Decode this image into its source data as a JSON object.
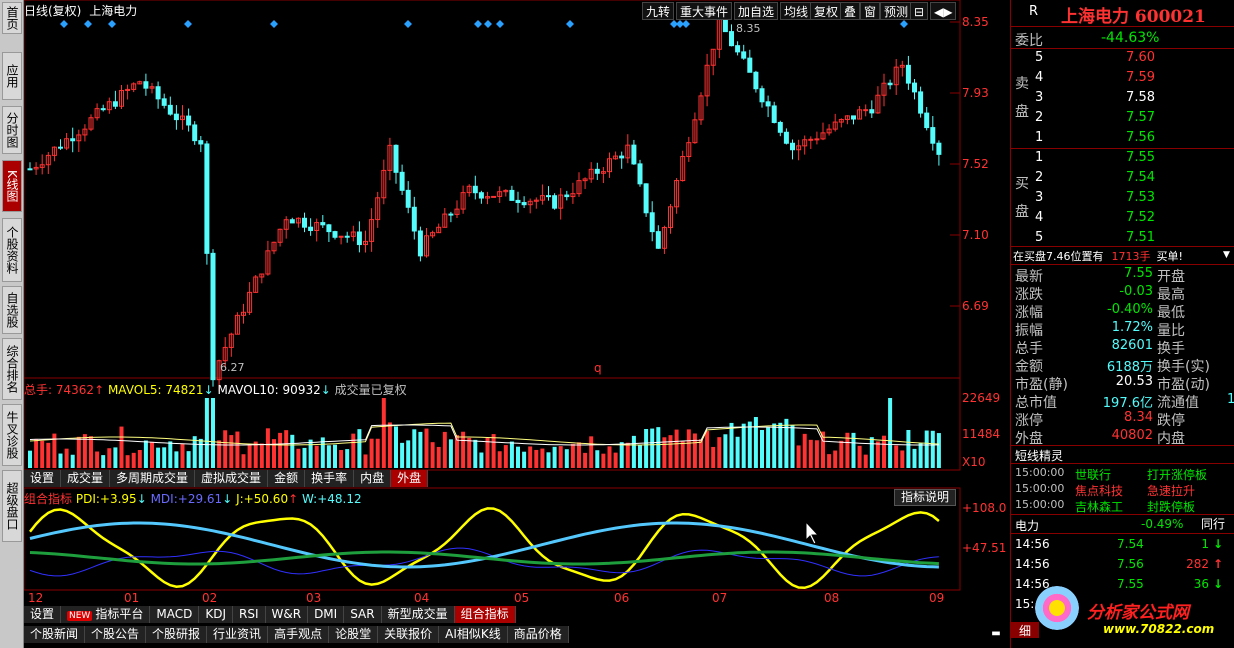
{
  "left_nav": [
    {
      "label": "首页",
      "active": false
    },
    {
      "label": "应用",
      "active": false
    },
    {
      "label": "分时图",
      "active": false
    },
    {
      "label": "K线图",
      "active": true
    },
    {
      "label": "个股资料",
      "active": false
    },
    {
      "label": "自选股",
      "active": false
    },
    {
      "label": "综合排名",
      "active": false
    },
    {
      "label": "牛叉诊股",
      "active": false
    },
    {
      "label": "超级盘口",
      "active": false
    }
  ],
  "chart_header": {
    "period": "日线(复权)",
    "name": "上海电力"
  },
  "toolbar": [
    "九转",
    "重大事件",
    "加自选",
    "均线",
    "复权",
    "叠",
    "窗",
    "预测",
    "⊟",
    "◀▶"
  ],
  "price_axis": [
    "8.35",
    "7.93",
    "7.52",
    "7.10",
    "6.69"
  ],
  "price_high_label": "8.35",
  "price_low_label": "6.27",
  "q_marker": "q",
  "volume_header": {
    "total_label": "总手:",
    "total_value": "74362",
    "total_arrow": "↑",
    "ma5_label": "MAVOL5:",
    "ma5_value": "74821",
    "ma5_arrow": "↓",
    "ma10_label": "MAVOL10:",
    "ma10_value": "90932",
    "ma10_arrow": "↓",
    "note": "成交量已复权"
  },
  "volume_axis": [
    "22649",
    "11484",
    "X10"
  ],
  "vol_tabs": [
    "设置",
    "成交量",
    "多周期成交量",
    "虚拟成交量",
    "金额",
    "换手率",
    "内盘",
    "外盘"
  ],
  "indicator_header": {
    "name": "组合指标",
    "pdi_label": "PDI:",
    "pdi_value": "+3.95",
    "pdi_arrow": "↓",
    "mdi_label": "MDI:",
    "mdi_value": "+29.61",
    "mdi_arrow": "↓",
    "j_label": "J:",
    "j_value": "+50.60",
    "j_arrow": "↑",
    "w_label": "W:",
    "w_value": "+48.12",
    "explain_button": "指标说明"
  },
  "indicator_axis": [
    "+108.0",
    "+47.51"
  ],
  "months": [
    "12",
    "01",
    "02",
    "03",
    "04",
    "05",
    "06",
    "07",
    "08",
    "09"
  ],
  "ind_tabs": [
    {
      "label": "设置",
      "badge": ""
    },
    {
      "label": "指标平台",
      "badge": "NEW"
    },
    {
      "label": "MACD",
      "badge": ""
    },
    {
      "label": "KDJ",
      "badge": ""
    },
    {
      "label": "RSI",
      "badge": ""
    },
    {
      "label": "W&R",
      "badge": ""
    },
    {
      "label": "DMI",
      "badge": ""
    },
    {
      "label": "SAR",
      "badge": ""
    },
    {
      "label": "新型成交量",
      "badge": ""
    },
    {
      "label": "组合指标",
      "badge": ""
    }
  ],
  "bottom_tabs": [
    "个股新闻",
    "个股公告",
    "个股研报",
    "行业资讯",
    "高手观点",
    "论股堂",
    "关联报价",
    "AI相似K线",
    "商品价格"
  ],
  "quote": {
    "r_label": "R",
    "title": "上海电力 600021",
    "weibi_label": "委比",
    "weibi_value": "-44.63%",
    "sell_label": "卖盘",
    "sells": [
      {
        "n": "5",
        "price": "7.60"
      },
      {
        "n": "4",
        "price": "7.59"
      },
      {
        "n": "3",
        "price": "7.58"
      },
      {
        "n": "2",
        "price": "7.57"
      },
      {
        "n": "1",
        "price": "7.56"
      }
    ],
    "buy_label": "买盘",
    "buys": [
      {
        "n": "1",
        "price": "7.55"
      },
      {
        "n": "2",
        "price": "7.54"
      },
      {
        "n": "3",
        "price": "7.53"
      },
      {
        "n": "4",
        "price": "7.52"
      },
      {
        "n": "5",
        "price": "7.51"
      }
    ],
    "notice_text": "在买盘7.46位置有",
    "notice_amount": "1713手",
    "notice_action": "买单!",
    "stats": [
      {
        "l1": "最新",
        "v1": "7.55",
        "c1": "green",
        "l2": "开盘"
      },
      {
        "l1": "涨跌",
        "v1": "-0.03",
        "c1": "green",
        "l2": "最高"
      },
      {
        "l1": "涨幅",
        "v1": "-0.40%",
        "c1": "green",
        "l2": "最低"
      },
      {
        "l1": "振幅",
        "v1": "1.72%",
        "c1": "cyan",
        "l2": "量比"
      },
      {
        "l1": "总手",
        "v1": "82601",
        "c1": "cyan",
        "l2": "换手"
      },
      {
        "l1": "金额",
        "v1": "6188万",
        "c1": "cyan",
        "l2": "换手(实)"
      },
      {
        "l1": "市盈(静)",
        "v1": "20.53",
        "c1": "white",
        "l2": "市盈(动)"
      },
      {
        "l1": "总市值",
        "v1": "197.6亿",
        "c1": "cyan",
        "l2": "流通值"
      },
      {
        "l1": "涨停",
        "v1": "8.34",
        "c1": "red",
        "l2": "跌停"
      },
      {
        "l1": "外盘",
        "v1": "40802",
        "c1": "red",
        "l2": "内盘"
      }
    ],
    "float_value_tail": "1",
    "sprite_title": "短线精灵",
    "sprites": [
      {
        "time": "15:00:00",
        "name": "世联行",
        "event": "打开涨停板",
        "color": "green"
      },
      {
        "time": "15:00:00",
        "name": "焦点科技",
        "event": "急速拉升",
        "color": "red"
      },
      {
        "time": "15:00:00",
        "name": "吉林森工",
        "event": "封跌停板",
        "color": "green"
      }
    ],
    "sector_name": "电力",
    "sector_change": "-0.49%",
    "sector_btn": "同行",
    "ticks": [
      {
        "time": "14:56",
        "price": "7.54",
        "vol": "1",
        "dir": "down"
      },
      {
        "time": "14:56",
        "price": "7.56",
        "vol": "282",
        "dir": "up"
      },
      {
        "time": "14:56",
        "price": "7.55",
        "vol": "36",
        "dir": "down"
      },
      {
        "time": "15:",
        "price": "",
        "vol": "",
        "dir": ""
      }
    ],
    "watermark": "分析家公式网",
    "watermark_url": "www.70822.com",
    "corner_tab": "细"
  },
  "colors": {
    "up": "#ff3232",
    "down": "#54fcfc",
    "pdi": "#ffff00",
    "mdi": "#3030ff",
    "w": "#54c8fc",
    "j": "#1e9e3c"
  }
}
